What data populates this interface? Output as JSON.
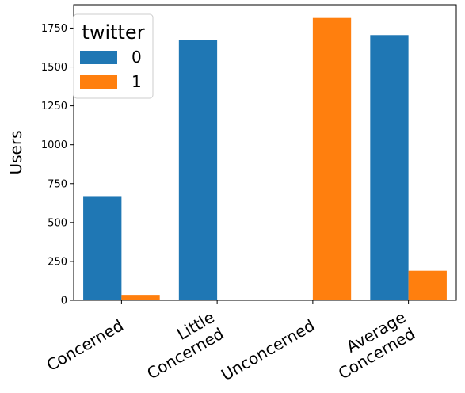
{
  "chart_data": {
    "type": "bar",
    "categories": [
      [
        "Concerned"
      ],
      [
        "Little",
        "Concerned"
      ],
      [
        "Unconcerned"
      ],
      [
        "Average",
        "Concerned"
      ]
    ],
    "series": [
      {
        "name": "0",
        "color": "#1f77b4",
        "values": [
          665,
          1675,
          0,
          1705
        ]
      },
      {
        "name": "1",
        "color": "#ff7f0e",
        "values": [
          35,
          0,
          1815,
          190
        ]
      }
    ],
    "title": "",
    "xlabel": "",
    "ylabel": "Users",
    "ylim": [
      0,
      1900
    ],
    "yticks": [
      0,
      250,
      500,
      750,
      1000,
      1250,
      1500,
      1750
    ],
    "legend": {
      "title": "twitter",
      "placement": "top-left"
    },
    "grid": false
  }
}
